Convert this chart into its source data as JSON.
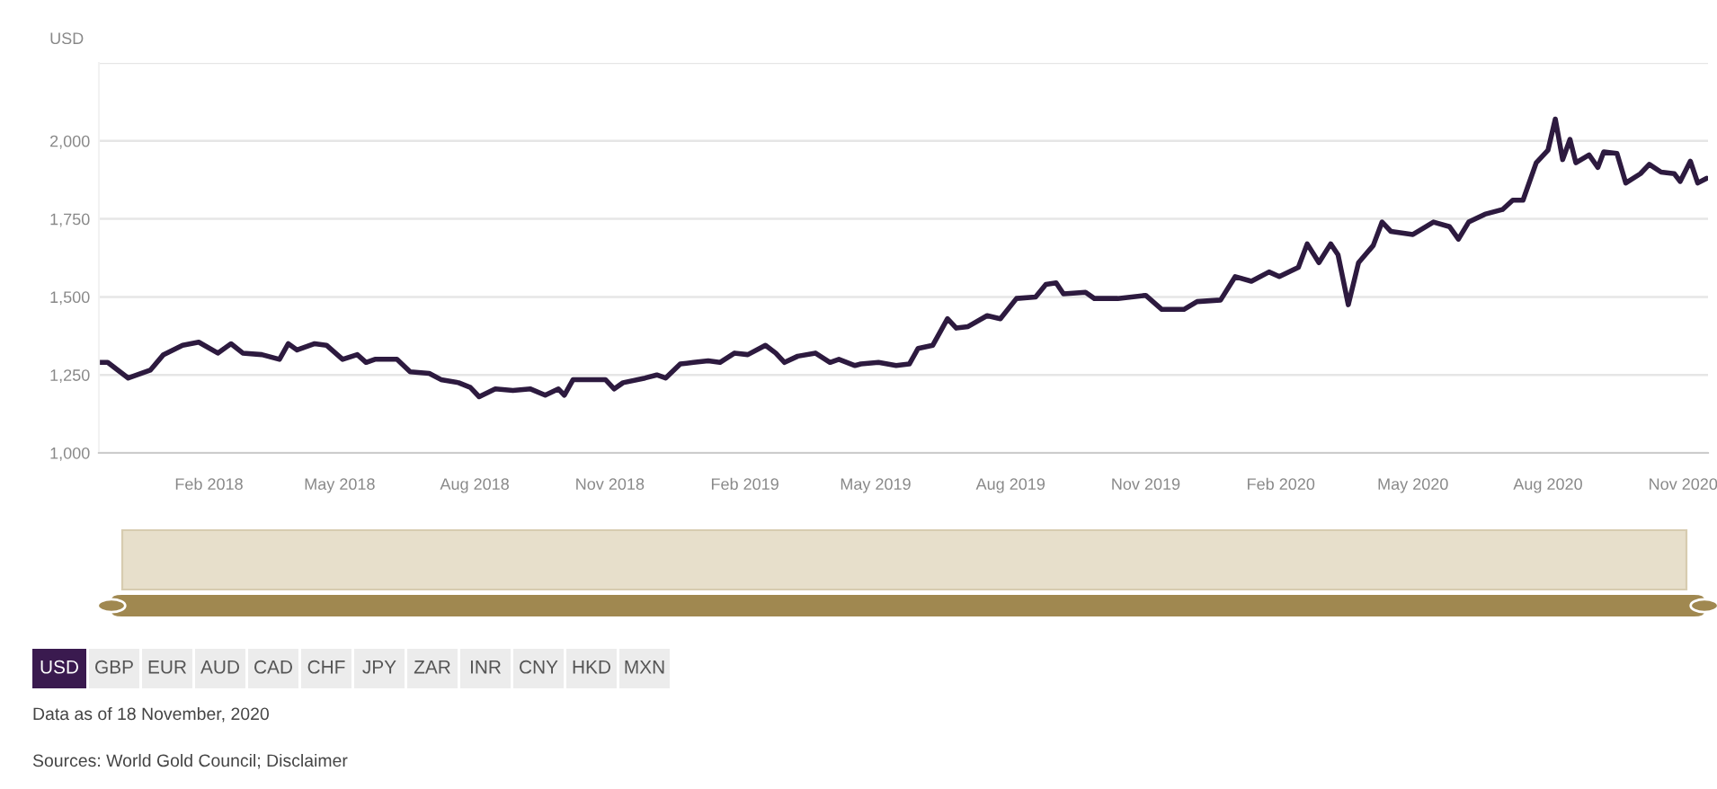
{
  "chart_data": {
    "type": "line",
    "ylabel": "USD",
    "x": [
      "2017-11-18",
      "2017-11-24",
      "2017-12-08",
      "2017-12-23",
      "2018-01-01",
      "2018-01-14",
      "2018-01-25",
      "2018-02-07",
      "2018-02-16",
      "2018-02-24",
      "2018-03-09",
      "2018-03-21",
      "2018-03-27",
      "2018-04-02",
      "2018-04-14",
      "2018-04-22",
      "2018-05-03",
      "2018-05-13",
      "2018-05-19",
      "2018-05-25",
      "2018-06-09",
      "2018-06-18",
      "2018-07-01",
      "2018-07-09",
      "2018-07-21",
      "2018-07-29",
      "2018-08-04",
      "2018-08-15",
      "2018-08-27",
      "2018-09-08",
      "2018-09-18",
      "2018-09-27",
      "2018-10-01",
      "2018-10-07",
      "2018-10-19",
      "2018-10-29",
      "2018-11-04",
      "2018-11-10",
      "2018-11-25",
      "2018-12-03",
      "2018-12-09",
      "2018-12-19",
      "2018-12-28",
      "2019-01-07",
      "2019-01-15",
      "2019-01-25",
      "2019-02-03",
      "2019-02-15",
      "2019-02-22",
      "2019-02-28",
      "2019-03-09",
      "2019-03-21",
      "2019-03-31",
      "2019-04-06",
      "2019-04-17",
      "2019-04-21",
      "2019-05-03",
      "2019-05-15",
      "2019-05-24",
      "2019-05-30",
      "2019-06-09",
      "2019-06-19",
      "2019-06-25",
      "2019-07-03",
      "2019-07-16",
      "2019-07-25",
      "2019-08-05",
      "2019-08-18",
      "2019-08-25",
      "2019-09-01",
      "2019-09-06",
      "2019-09-21",
      "2019-09-27",
      "2019-10-13",
      "2019-11-01",
      "2019-11-12",
      "2019-11-27",
      "2019-12-06",
      "2019-12-22",
      "2020-01-01",
      "2020-01-12",
      "2020-01-24",
      "2020-01-31",
      "2020-02-13",
      "2020-02-19",
      "2020-02-27",
      "2020-03-06",
      "2020-03-11",
      "2020-03-18",
      "2020-03-25",
      "2020-04-04",
      "2020-04-10",
      "2020-04-16",
      "2020-05-01",
      "2020-05-15",
      "2020-05-26",
      "2020-06-01",
      "2020-06-08",
      "2020-06-19",
      "2020-07-01",
      "2020-07-08",
      "2020-07-15",
      "2020-07-24",
      "2020-08-01",
      "2020-08-06",
      "2020-08-11",
      "2020-08-16",
      "2020-08-20",
      "2020-08-29",
      "2020-09-04",
      "2020-09-08",
      "2020-09-17",
      "2020-09-23",
      "2020-10-03",
      "2020-10-09",
      "2020-10-17",
      "2020-10-26",
      "2020-10-30",
      "2020-11-06",
      "2020-11-11",
      "2020-11-17"
    ],
    "series": [
      {
        "color": "#2d1a3f",
        "values": [
          1290,
          1290,
          1240,
          1265,
          1315,
          1345,
          1355,
          1320,
          1350,
          1320,
          1315,
          1300,
          1350,
          1330,
          1350,
          1345,
          1300,
          1315,
          1290,
          1300,
          1300,
          1260,
          1255,
          1235,
          1225,
          1210,
          1180,
          1205,
          1200,
          1205,
          1185,
          1205,
          1185,
          1235,
          1235,
          1235,
          1205,
          1225,
          1240,
          1250,
          1240,
          1285,
          1290,
          1295,
          1290,
          1320,
          1315,
          1345,
          1320,
          1290,
          1310,
          1320,
          1290,
          1300,
          1280,
          1285,
          1290,
          1280,
          1285,
          1335,
          1345,
          1430,
          1400,
          1405,
          1440,
          1430,
          1495,
          1500,
          1540,
          1545,
          1510,
          1515,
          1495,
          1495,
          1505,
          1460,
          1460,
          1485,
          1490,
          1565,
          1550,
          1580,
          1565,
          1595,
          1670,
          1610,
          1670,
          1635,
          1475,
          1610,
          1665,
          1740,
          1710,
          1700,
          1740,
          1725,
          1685,
          1740,
          1765,
          1780,
          1810,
          1810,
          1930,
          1970,
          2070,
          1940,
          2005,
          1930,
          1955,
          1915,
          1965,
          1960,
          1865,
          1895,
          1925,
          1900,
          1895,
          1870,
          1935,
          1865,
          1880
        ]
      }
    ],
    "xlim": [
      "2017-11-18",
      "2020-11-18"
    ],
    "xticks": [
      {
        "value": "2018-02-01",
        "label": "Feb 2018"
      },
      {
        "value": "2018-05-01",
        "label": "May 2018"
      },
      {
        "value": "2018-08-01",
        "label": "Aug 2018"
      },
      {
        "value": "2018-11-01",
        "label": "Nov 2018"
      },
      {
        "value": "2019-02-01",
        "label": "Feb 2019"
      },
      {
        "value": "2019-05-01",
        "label": "May 2019"
      },
      {
        "value": "2019-08-01",
        "label": "Aug 2019"
      },
      {
        "value": "2019-11-01",
        "label": "Nov 2019"
      },
      {
        "value": "2020-02-01",
        "label": "Feb 2020"
      },
      {
        "value": "2020-05-01",
        "label": "May 2020"
      },
      {
        "value": "2020-08-01",
        "label": "Aug 2020"
      },
      {
        "value": "2020-11-01",
        "label": "Nov 2020"
      }
    ],
    "ylim": [
      1000,
      2250
    ],
    "yticks": [
      {
        "value": 1000,
        "label": "1,000"
      },
      {
        "value": 1250,
        "label": "1,250"
      },
      {
        "value": 1500,
        "label": "1,500"
      },
      {
        "value": 1750,
        "label": "1,750"
      },
      {
        "value": 2000,
        "label": "2,000"
      },
      {
        "value": 2250,
        "label": null
      }
    ],
    "grid": "y",
    "legend": false,
    "annotations": [
      "USD",
      "GBP",
      "EUR",
      "AUD",
      "CAD",
      "CHF",
      "JPY",
      "ZAR",
      "INR",
      "CNY",
      "HKD",
      "MXN",
      "Data as of 18 November, 2020",
      "Sources: World Gold Council; Disclaimer"
    ]
  }
}
